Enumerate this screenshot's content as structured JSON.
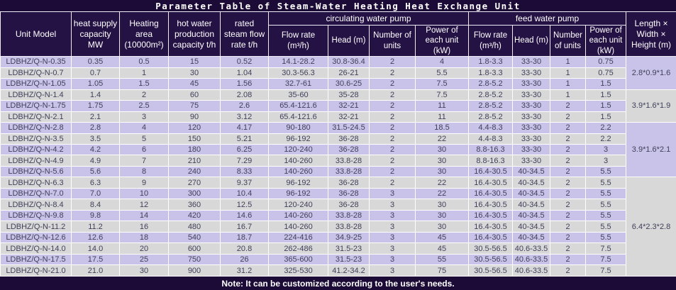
{
  "title": "Parameter Table of Steam-Water Heating Heat Exchange Unit",
  "note": "Note: It can be customized according to the user's needs.",
  "header": {
    "unit_model": "Unit Model",
    "heat_supply": "heat supply capacity MW",
    "heating_area": "Heating area (10000m²)",
    "hot_water": "hot water production capacity t/h",
    "rated_steam": "rated steam flow rate t/h",
    "circulating_group": "circulating water pump",
    "feed_group": "feed water pump",
    "flow_rate": "Flow rate (m³/h)",
    "head": "Head (m)",
    "number_of_units": "Number of units",
    "power_each": "Power of each unit (kW)",
    "dimensions": "Length × Width × Height (m)"
  },
  "table": {
    "column_ids": [
      "unit-model",
      "heat-supply",
      "heating-area",
      "hot-water",
      "rated-steam",
      "circ-flow",
      "circ-head",
      "circ-units",
      "circ-power",
      "feed-flow",
      "feed-head",
      "feed-units",
      "feed-power"
    ],
    "rows": [
      [
        "LDBHZ/Q-N-0.35",
        "0.35",
        "0.5",
        "15",
        "0.52",
        "14.1-28.2",
        "30.8-36.4",
        "2",
        "4",
        "1.8-3.3",
        "33-30",
        "1",
        "0.75"
      ],
      [
        "LDBHZ/Q-N-0.7",
        "0.7",
        "1",
        "30",
        "1.04",
        "30.3-56.3",
        "26-21",
        "2",
        "5.5",
        "1.8-3.3",
        "33-30",
        "1",
        "0.75"
      ],
      [
        "LDBHZ/Q-N-1.05",
        "1.05",
        "1.5",
        "45",
        "1.56",
        "32.7-61",
        "30.6-25",
        "2",
        "7.5",
        "2.8-5.2",
        "33-30",
        "1",
        "1.5"
      ],
      [
        "LDBHZ/Q-N-1.4",
        "1.4",
        "2",
        "60",
        "2.08",
        "35-60",
        "35-28",
        "2",
        "7.5",
        "2.8-5.2",
        "33-30",
        "1",
        "1.5"
      ],
      [
        "LDBHZ/Q-N-1.75",
        "1.75",
        "2.5",
        "75",
        "2.6",
        "65.4-121.6",
        "32-21",
        "2",
        "11",
        "2.8-5.2",
        "33-30",
        "2",
        "1.5"
      ],
      [
        "LDBHZ/Q-N-2.1",
        "2.1",
        "3",
        "90",
        "3.12",
        "65.4-121.6",
        "32-21",
        "2",
        "11",
        "2.8-5.2",
        "33-30",
        "2",
        "1.5"
      ],
      [
        "LDBHZ/Q-N-2.8",
        "2.8",
        "4",
        "120",
        "4.17",
        "90-180",
        "31.5-24.5",
        "2",
        "18.5",
        "4.4-8.3",
        "33-30",
        "2",
        "2.2"
      ],
      [
        "LDBHZ/Q-N-3.5",
        "3.5",
        "5",
        "150",
        "5.21",
        "96-192",
        "36-28",
        "2",
        "22",
        "4.4-8.3",
        "33-30",
        "2",
        "2.2"
      ],
      [
        "LDBHZ/Q-N-4.2",
        "4.2",
        "6",
        "180",
        "6.25",
        "120-240",
        "36-28",
        "2",
        "30",
        "8.8-16.3",
        "33-30",
        "2",
        "3"
      ],
      [
        "LDBHZ/Q-N-4.9",
        "4.9",
        "7",
        "210",
        "7.29",
        "140-260",
        "33.8-28",
        "2",
        "30",
        "8.8-16.3",
        "33-30",
        "2",
        "3"
      ],
      [
        "LDBHZ/Q-N-5.6",
        "5.6",
        "8",
        "240",
        "8.33",
        "140-260",
        "33.8-28",
        "2",
        "30",
        "16.4-30.5",
        "40-34.5",
        "2",
        "5.5"
      ],
      [
        "LDBHZ/Q-N-6.3",
        "6.3",
        "9",
        "270",
        "9.37",
        "96-192",
        "36-28",
        "2",
        "22",
        "16.4-30.5",
        "40-34.5",
        "2",
        "5.5"
      ],
      [
        "LDBHZ/Q-N-7.0",
        "7.0",
        "10",
        "300",
        "10.4",
        "96-192",
        "36-28",
        "3",
        "22",
        "16.4-30.5",
        "40-34.5",
        "2",
        "5.5"
      ],
      [
        "LDBHZ/Q-N-8.4",
        "8.4",
        "12",
        "360",
        "12.5",
        "120-240",
        "36-28",
        "3",
        "30",
        "16.4-30.5",
        "40-34.5",
        "2",
        "5.5"
      ],
      [
        "LDBHZ/Q-N-9.8",
        "9.8",
        "14",
        "420",
        "14.6",
        "140-260",
        "33.8-28",
        "3",
        "30",
        "16.4-30.5",
        "40-34.5",
        "2",
        "5.5"
      ],
      [
        "LDBHZ/Q-N-11.2",
        "11.2",
        "16",
        "480",
        "16.7",
        "140-260",
        "33.8-28",
        "3",
        "30",
        "16.4-30.5",
        "40-34.5",
        "2",
        "5.5"
      ],
      [
        "LDBHZ/Q-N-12.6",
        "12.6",
        "18",
        "540",
        "18.7",
        "224-416",
        "34.9-25",
        "3",
        "45",
        "16.4-30.5",
        "40-34.5",
        "2",
        "5.5"
      ],
      [
        "LDBHZ/Q-N-14.0",
        "14.0",
        "20",
        "600",
        "20.8",
        "262-486",
        "31.5-23",
        "3",
        "45",
        "30.5-56.5",
        "40.6-33.5",
        "2",
        "7.5"
      ],
      [
        "LDBHZ/Q-N-17.5",
        "17.5",
        "25",
        "750",
        "26",
        "365-600",
        "31.5-23",
        "3",
        "55",
        "30.5-56.5",
        "40.6-33.5",
        "2",
        "7.5"
      ],
      [
        "LDBHZ/Q-N-21.0",
        "21.0",
        "30",
        "900",
        "31.2",
        "325-530",
        "41.2-34.2",
        "3",
        "75",
        "30.5-56.5",
        "40.6-33.5",
        "2",
        "7.5"
      ]
    ],
    "dimension_blocks": [
      {
        "span": 3,
        "label": "2.8*0.9*1.6"
      },
      {
        "span": 3,
        "label": "3.9*1.6*1.9"
      },
      {
        "span": 5,
        "label": "3.9*1.6*2.1"
      },
      {
        "span": 9,
        "label": "6.4*2.3*2.8"
      }
    ]
  },
  "colors": {
    "chrome_bg": "#1b0b36",
    "header_bg": "#241245",
    "row_lavender": "#c9c3e9",
    "row_grey": "#d8d8d8",
    "grid_line": "#ffffff",
    "text_dark": "#40405a",
    "text_light": "#ffffff"
  }
}
